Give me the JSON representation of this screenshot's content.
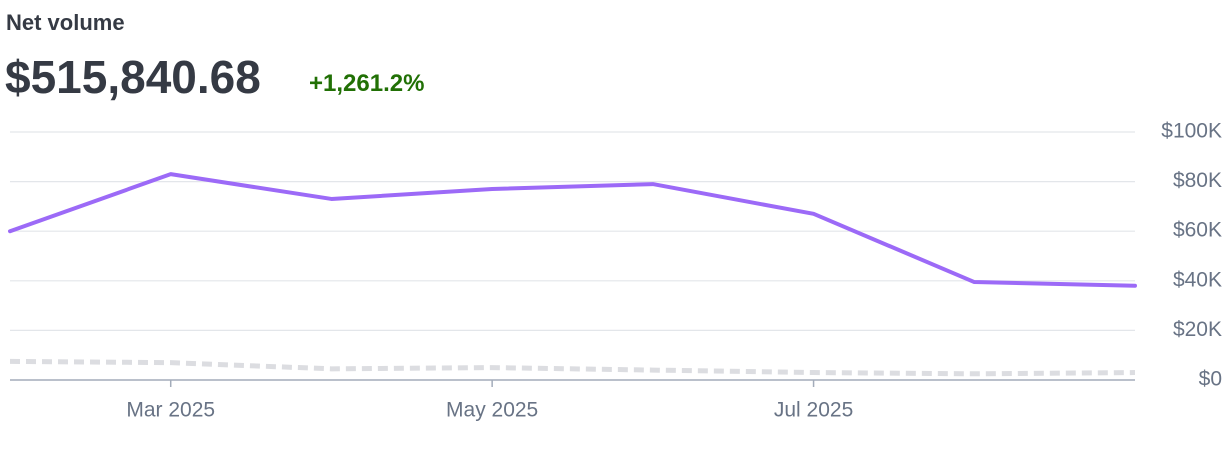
{
  "header": {
    "title": "Net volume",
    "total": "$515,840.68",
    "change": "+1,261.2%"
  },
  "chart_data": {
    "type": "line",
    "categories": [
      null,
      "Mar 2025",
      null,
      "May 2025",
      null,
      "Jul 2025",
      null,
      null
    ],
    "series": [
      {
        "color": "#9c6af7",
        "dashed": false,
        "values": [
          60000,
          83000,
          73000,
          77000,
          79000,
          67000,
          39500,
          38000
        ]
      },
      {
        "color": "#dcdde1",
        "dashed": true,
        "values": [
          7500,
          7000,
          4500,
          5000,
          4000,
          3000,
          2500,
          3000
        ]
      }
    ],
    "ylim": [
      0,
      100000
    ],
    "yticks": [
      {
        "value": 0,
        "label": "$0"
      },
      {
        "value": 20000,
        "label": "$20K"
      },
      {
        "value": 40000,
        "label": "$40K"
      },
      {
        "value": 60000,
        "label": "$60K"
      },
      {
        "value": 80000,
        "label": "$80K"
      },
      {
        "value": 100000,
        "label": "$100K"
      }
    ],
    "grid": true
  }
}
